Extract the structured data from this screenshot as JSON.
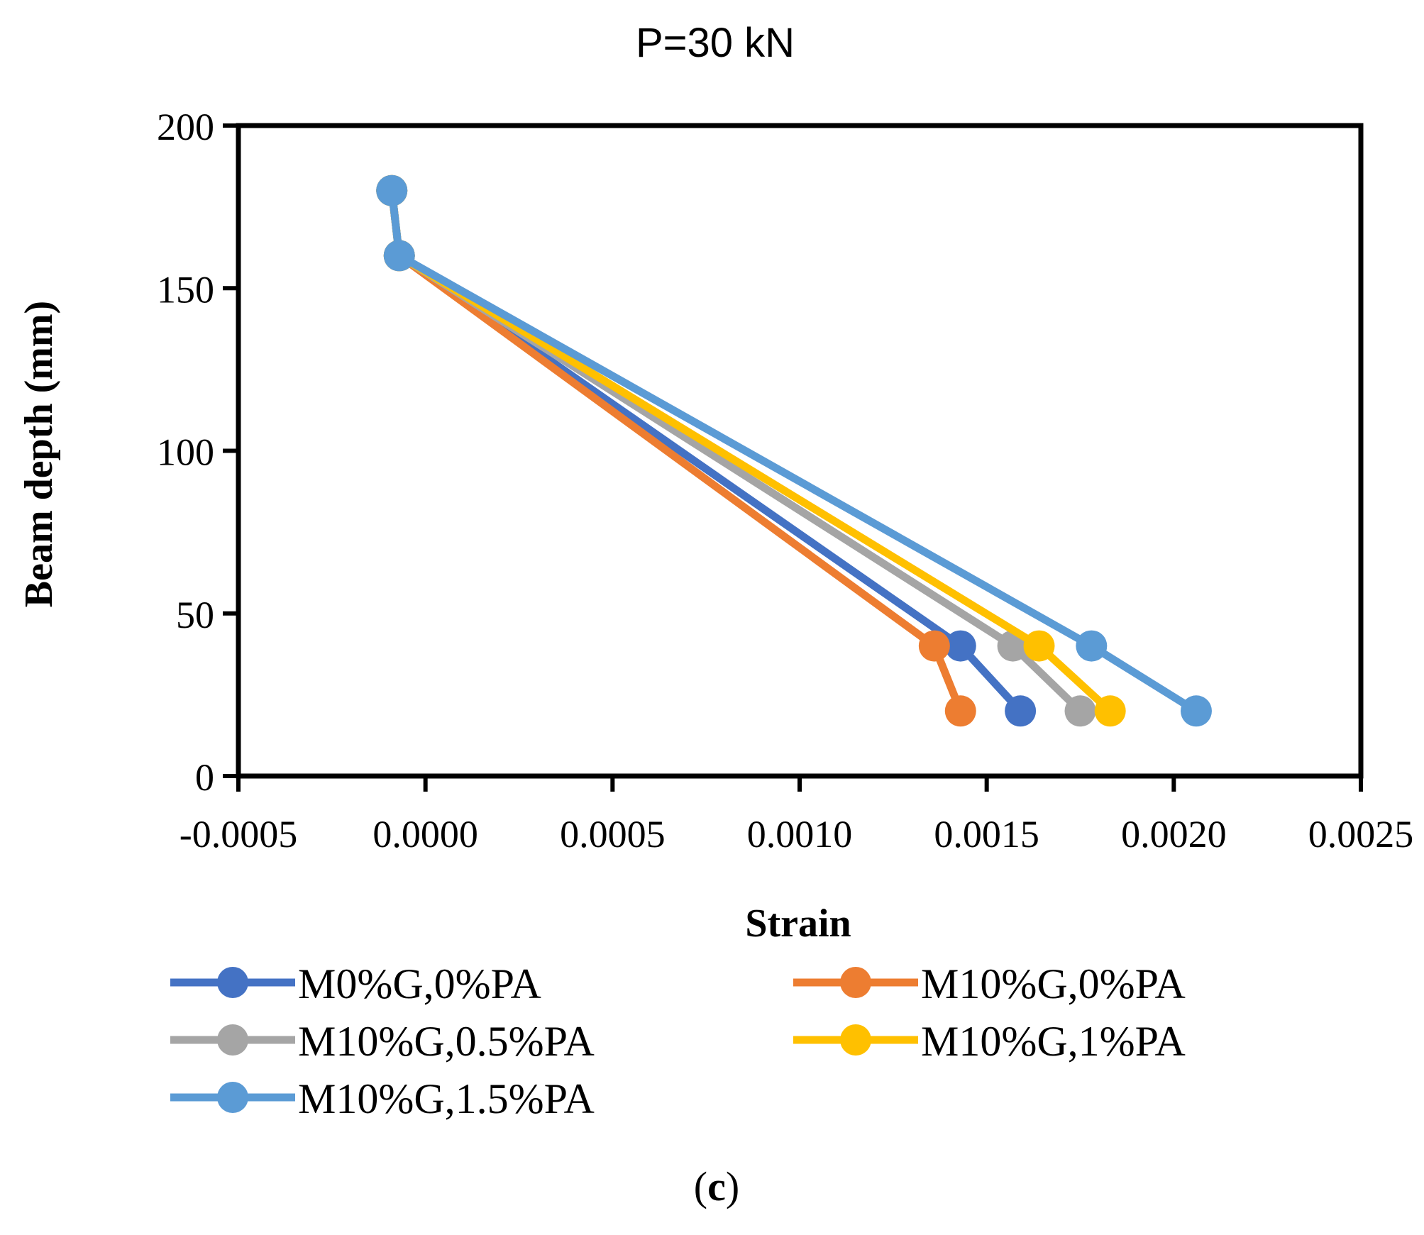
{
  "chart_data": {
    "type": "line",
    "title": "P=30 kN",
    "xlabel": "Strain",
    "ylabel": "Beam depth (mm)",
    "panel_label_open": "(",
    "panel_label_letter": "c",
    "panel_label_close": ")",
    "xlim": [
      -0.0005,
      0.0025
    ],
    "ylim": [
      0,
      200
    ],
    "xticks": [
      "-0.0005",
      "0.0000",
      "0.0005",
      "0.0010",
      "0.0015",
      "0.0020",
      "0.0025"
    ],
    "xtick_values": [
      -0.0005,
      0.0,
      0.0005,
      0.001,
      0.0015,
      0.002,
      0.0025
    ],
    "yticks": [
      "0",
      "50",
      "100",
      "150",
      "200"
    ],
    "ytick_values": [
      0,
      50,
      100,
      150,
      200
    ],
    "grid": false,
    "legend_position": "bottom",
    "series": [
      {
        "name": "M0%G,0%PA",
        "color": "#4472C4",
        "x": [
          -9e-05,
          -7e-05,
          0.00143,
          0.00159
        ],
        "y": [
          180,
          160,
          40,
          20
        ]
      },
      {
        "name": "M10%G,0%PA",
        "color": "#ED7D31",
        "x": [
          -9e-05,
          -7e-05,
          0.00136,
          0.00143
        ],
        "y": [
          180,
          160,
          40,
          20
        ]
      },
      {
        "name": "M10%G,0.5%PA",
        "color": "#A5A5A5",
        "x": [
          -9e-05,
          -7e-05,
          0.00157,
          0.00175
        ],
        "y": [
          180,
          160,
          40,
          20
        ]
      },
      {
        "name": "M10%G,1%PA",
        "color": "#FFC000",
        "x": [
          -9e-05,
          -7e-05,
          0.00164,
          0.00183
        ],
        "y": [
          180,
          160,
          40,
          20
        ]
      },
      {
        "name": "M10%G,1.5%PA",
        "color": "#5B9BD5",
        "x": [
          -9e-05,
          -7e-05,
          0.00178,
          0.00206
        ],
        "y": [
          180,
          160,
          40,
          20
        ]
      }
    ]
  }
}
